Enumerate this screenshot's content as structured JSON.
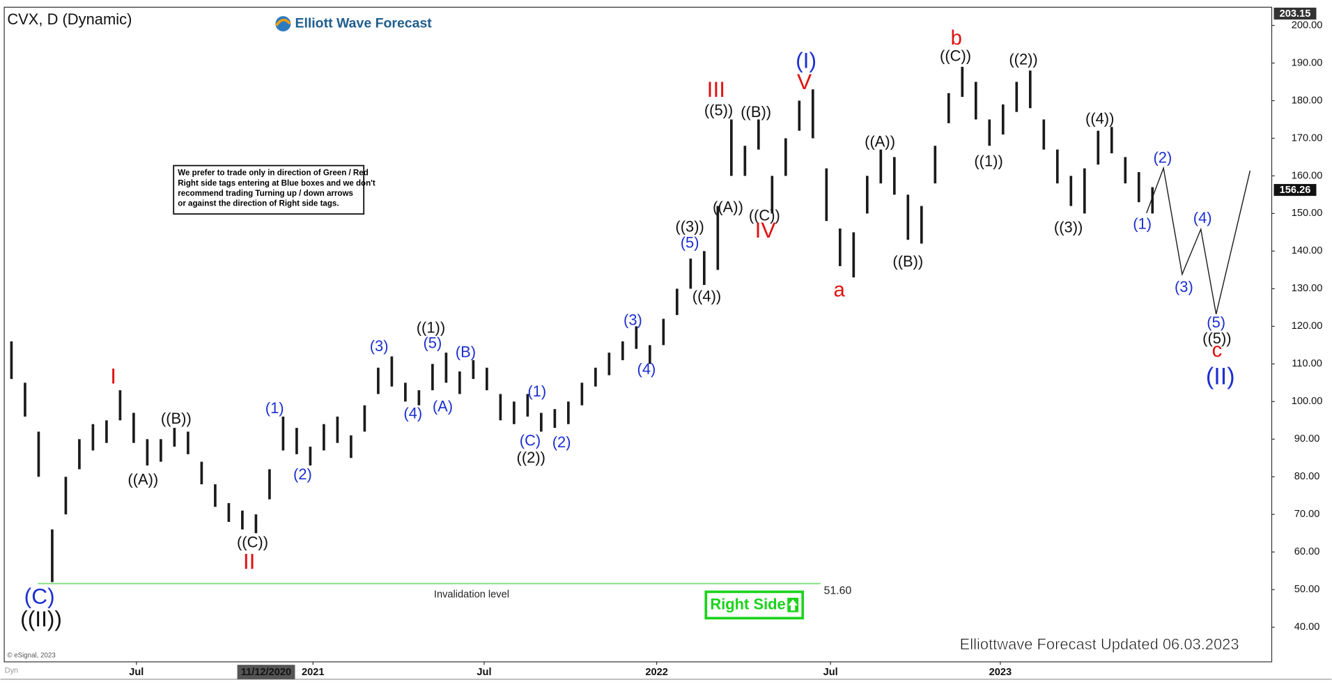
{
  "title": "CVX, D (Dynamic)",
  "logo": "Elliott Wave Forecast",
  "note": [
    "We prefer to trade only in direction of Green / Red",
    "Right side tags entering at Blue boxes and we don't",
    "recommend trading Turning up / down arrows",
    "or against the direction of Right side tags."
  ],
  "button": "Right Side",
  "footer": "Elliottwave Forecast Updated 06.03.2023",
  "copyright": "© eSignal, 2023",
  "mode": "Dyn",
  "chart_data": {
    "type": "ohlc",
    "color": "#1a1a1a",
    "categories": [
      null,
      null,
      null,
      null,
      null,
      null,
      null,
      null,
      null,
      null,
      null,
      null,
      null,
      null,
      null,
      null,
      null,
      null,
      null,
      null,
      null,
      null,
      null,
      null,
      null,
      null,
      null,
      null,
      null,
      null,
      null,
      null,
      null,
      null,
      null,
      null,
      null,
      null,
      null,
      null,
      null,
      null,
      null,
      null,
      null,
      null,
      null,
      null,
      null,
      null,
      null,
      null,
      null,
      null,
      null,
      null,
      null,
      null,
      null,
      null,
      null,
      null,
      null,
      null,
      null,
      null,
      null,
      null,
      null,
      null,
      null,
      null,
      null,
      null,
      null,
      null,
      null,
      null,
      null,
      null,
      null,
      null,
      null,
      null,
      null
    ],
    "high": [
      116,
      105,
      92,
      66,
      80,
      90,
      94,
      95,
      103,
      97,
      90,
      90,
      93,
      92,
      84,
      78,
      73,
      71,
      70,
      82,
      96,
      93,
      88,
      94,
      96,
      91,
      99,
      109,
      112,
      105,
      103,
      110,
      113,
      108,
      111,
      109,
      102,
      100,
      102,
      97,
      98,
      100,
      105,
      109,
      113,
      116,
      120,
      115,
      122,
      130,
      138,
      140,
      152,
      175,
      168,
      175,
      160,
      170,
      180,
      183,
      162,
      146,
      145,
      160,
      167,
      165,
      155,
      152,
      168,
      182,
      189,
      185,
      175,
      179,
      185,
      188,
      175,
      167,
      160,
      162,
      172,
      173,
      165,
      161,
      157
    ],
    "low": [
      106,
      96,
      80,
      52,
      70,
      82,
      87,
      89,
      95,
      89,
      83,
      84,
      88,
      86,
      78,
      72,
      68,
      66,
      65,
      74,
      87,
      86,
      83,
      87,
      89,
      85,
      92,
      102,
      104,
      100,
      99,
      103,
      105,
      102,
      106,
      103,
      95,
      94,
      96,
      92,
      93,
      94,
      99,
      104,
      107,
      111,
      114,
      110,
      115,
      123,
      130,
      131,
      135,
      160,
      160,
      167,
      150,
      160,
      172,
      170,
      148,
      136,
      133,
      150,
      158,
      155,
      143,
      142,
      158,
      174,
      181,
      175,
      168,
      171,
      177,
      178,
      167,
      158,
      152,
      150,
      163,
      166,
      158,
      153,
      150
    ],
    "ylim": [
      30.9,
      203.15
    ],
    "yticks": [
      {
        "value": 40,
        "label": "40.00"
      },
      {
        "value": 50,
        "label": "50.00"
      },
      {
        "value": 60,
        "label": "60.00"
      },
      {
        "value": 70,
        "label": "70.00"
      },
      {
        "value": 80,
        "label": "80.00"
      },
      {
        "value": 90,
        "label": "90.00"
      },
      {
        "value": 100,
        "label": "100.00"
      },
      {
        "value": 110,
        "label": "110.00"
      },
      {
        "value": 120,
        "label": "120.00"
      },
      {
        "value": 130,
        "label": "130.00"
      },
      {
        "value": 140,
        "label": "140.00"
      },
      {
        "value": 150,
        "label": "150.00"
      },
      {
        "value": 160,
        "label": "160.00"
      },
      {
        "value": 170,
        "label": "170.00"
      },
      {
        "value": 180,
        "label": "180.00"
      },
      {
        "value": 190,
        "label": "190.00"
      },
      {
        "value": 200,
        "label": "200.00"
      }
    ],
    "xticks": [
      {
        "value": 9.2,
        "label": "Jul"
      },
      {
        "value": 22.2,
        "label": "2021"
      },
      {
        "value": 34.8,
        "label": "Jul"
      },
      {
        "value": 47.5,
        "label": "2022"
      },
      {
        "value": 60.3,
        "label": "Jul"
      },
      {
        "value": 72.8,
        "label": "2023"
      }
    ],
    "cursor_date": {
      "value": 18.75,
      "label": "11/12/2020"
    },
    "price_tags": [
      {
        "value": 203.15,
        "label": "203.15"
      },
      {
        "value": 156.26,
        "label": "156.26"
      }
    ],
    "invalidation": {
      "value": 51.6,
      "label": "51.60",
      "text": "Invalidation level",
      "color": "#7ddc7d"
    },
    "annotations": [
      {
        "text": "((II))",
        "color": "#111"
      },
      {
        "text": "(C)",
        "color": "#1c2fd0"
      },
      {
        "text": "I",
        "color": "#e01010"
      },
      {
        "text": "((A))",
        "color": "#111"
      },
      {
        "text": "((B))",
        "color": "#111"
      },
      {
        "text": "((C))",
        "color": "#111"
      },
      {
        "text": "II",
        "color": "#e01010"
      },
      {
        "text": "(1)",
        "color": "#1c2fd0"
      },
      {
        "text": "(2)",
        "color": "#1c2fd0"
      },
      {
        "text": "(3)",
        "color": "#1c2fd0"
      },
      {
        "text": "(4)",
        "color": "#1c2fd0"
      },
      {
        "text": "((1))",
        "color": "#111"
      },
      {
        "text": "(5)",
        "color": "#1c2fd0"
      },
      {
        "text": "(A)",
        "color": "#1c2fd0"
      },
      {
        "text": "(B)",
        "color": "#1c2fd0"
      },
      {
        "text": "(1)",
        "color": "#1c2fd0"
      },
      {
        "text": "(C)",
        "color": "#1c2fd0"
      },
      {
        "text": "((2))",
        "color": "#111"
      },
      {
        "text": "(2)",
        "color": "#1c2fd0"
      },
      {
        "text": "(3)",
        "color": "#1c2fd0"
      },
      {
        "text": "(4)",
        "color": "#1c2fd0"
      },
      {
        "text": "((3))",
        "color": "#111"
      },
      {
        "text": "(5)",
        "color": "#1c2fd0"
      },
      {
        "text": "((4))",
        "color": "#111"
      },
      {
        "text": "III",
        "color": "#e01010"
      },
      {
        "text": "((5))",
        "color": "#111"
      },
      {
        "text": "((A))",
        "color": "#111"
      },
      {
        "text": "((B))",
        "color": "#111"
      },
      {
        "text": "((C))",
        "color": "#111"
      },
      {
        "text": "IV",
        "color": "#e01010"
      },
      {
        "text": "(I)",
        "color": "#1c2fd0"
      },
      {
        "text": "V",
        "color": "#e01010"
      },
      {
        "text": "a",
        "color": "#e01010"
      },
      {
        "text": "((A))",
        "color": "#111"
      },
      {
        "text": "((B))",
        "color": "#111"
      },
      {
        "text": "b",
        "color": "#e01010"
      },
      {
        "text": "((C))",
        "color": "#111"
      },
      {
        "text": "((1))",
        "color": "#111"
      },
      {
        "text": "((2))",
        "color": "#111"
      },
      {
        "text": "((3))",
        "color": "#111"
      },
      {
        "text": "((4))",
        "color": "#111"
      },
      {
        "text": "(1)",
        "color": "#1c2fd0"
      },
      {
        "text": "(2)",
        "color": "#1c2fd0"
      },
      {
        "text": "(3)",
        "color": "#1c2fd0"
      },
      {
        "text": "(4)",
        "color": "#1c2fd0"
      },
      {
        "text": "(5)",
        "color": "#1c2fd0"
      },
      {
        "text": "((5))",
        "color": "#111"
      },
      {
        "text": "c",
        "color": "#e01010"
      },
      {
        "text": "(II)",
        "color": "#1c2fd0"
      }
    ]
  }
}
